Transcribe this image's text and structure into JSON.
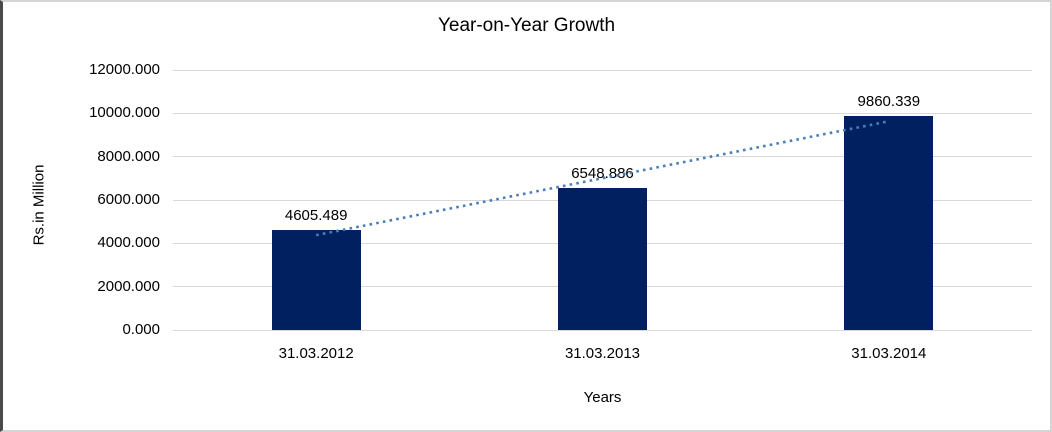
{
  "chart_data": {
    "type": "bar",
    "title": "Year-on-Year Growth",
    "xlabel": "Years",
    "ylabel": "Rs.in Million",
    "categories": [
      "31.03.2012",
      "31.03.2013",
      "31.03.2014"
    ],
    "series": [
      {
        "name": "Year-on-Year Growth",
        "values": [
          4605.489,
          6548.886,
          9860.339
        ],
        "data_labels": [
          "4605.489",
          "6548.886",
          "9860.339"
        ]
      }
    ],
    "ylim": [
      0,
      12000
    ],
    "ytick_values": [
      0,
      2000,
      4000,
      6000,
      8000,
      10000,
      12000
    ],
    "ytick_labels": [
      "0.000",
      "2000.000",
      "4000.000",
      "6000.000",
      "8000.000",
      "10000.000",
      "12000.000"
    ],
    "grid": true,
    "legend_position": "none",
    "colors": {
      "bar": "#002060",
      "trendline": "#4a7ebb",
      "gridline": "#d9d9d9",
      "text": "#000000"
    },
    "trendline": {
      "type": "linear",
      "style": "dotted"
    }
  }
}
